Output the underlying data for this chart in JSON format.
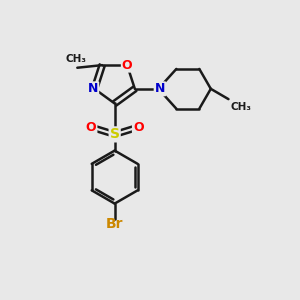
{
  "background_color": "#e8e8e8",
  "bond_color": "#1a1a1a",
  "O_color": "#ff0000",
  "N_color": "#0000cc",
  "S_color": "#cccc00",
  "Br_color": "#cc8800",
  "line_width": 1.8,
  "fig_width": 3.0,
  "fig_height": 3.0,
  "dpi": 100,
  "xlim": [
    0,
    10
  ],
  "ylim": [
    0,
    10
  ]
}
